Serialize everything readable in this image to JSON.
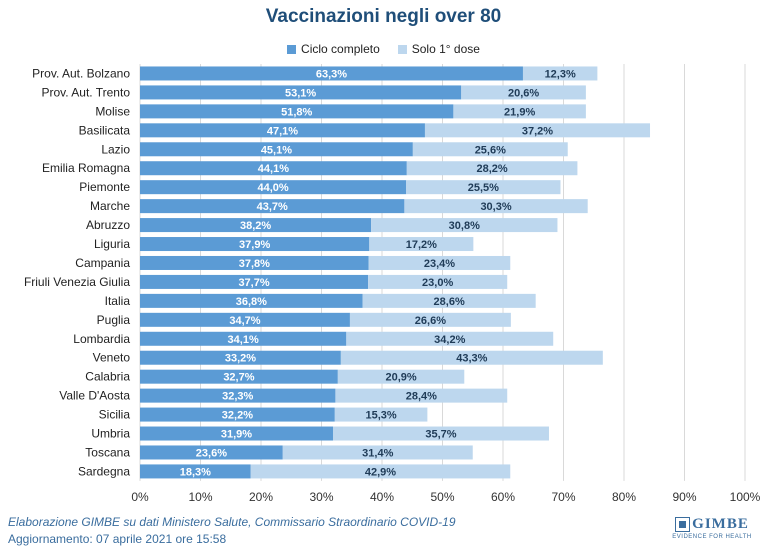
{
  "chart_data": {
    "type": "bar",
    "orientation": "horizontal",
    "stacked": true,
    "title": "Vaccinazioni negli over 80",
    "categories": [
      "Prov. Aut. Bolzano",
      "Prov. Aut. Trento",
      "Molise",
      "Basilicata",
      "Lazio",
      "Emilia Romagna",
      "Piemonte",
      "Marche",
      "Abruzzo",
      "Liguria",
      "Campania",
      "Friuli Venezia Giulia",
      "Italia",
      "Puglia",
      "Lombardia",
      "Veneto",
      "Calabria",
      "Valle D'Aosta",
      "Sicilia",
      "Umbria",
      "Toscana",
      "Sardegna"
    ],
    "series": [
      {
        "name": "Ciclo completo",
        "color": "#5b9bd5",
        "values": [
          63.3,
          53.1,
          51.8,
          47.1,
          45.1,
          44.1,
          44.0,
          43.7,
          38.2,
          37.9,
          37.8,
          37.7,
          36.8,
          34.7,
          34.1,
          33.2,
          32.7,
          32.3,
          32.2,
          31.9,
          23.6,
          18.3
        ],
        "labels": [
          "63,3%",
          "53,1%",
          "51,8%",
          "47,1%",
          "45,1%",
          "44,1%",
          "44,0%",
          "43,7%",
          "38,2%",
          "37,9%",
          "37,8%",
          "37,7%",
          "36,8%",
          "34,7%",
          "34,1%",
          "33,2%",
          "32,7%",
          "32,3%",
          "32,2%",
          "31,9%",
          "23,6%",
          "18,3%"
        ]
      },
      {
        "name": "Solo 1° dose",
        "color": "#bdd7ee",
        "values": [
          12.3,
          20.6,
          21.9,
          37.2,
          25.6,
          28.2,
          25.5,
          30.3,
          30.8,
          17.2,
          23.4,
          23.0,
          28.6,
          26.6,
          34.2,
          43.3,
          20.9,
          28.4,
          15.3,
          35.7,
          31.4,
          42.9
        ],
        "labels": [
          "12,3%",
          "20,6%",
          "21,9%",
          "37,2%",
          "25,6%",
          "28,2%",
          "25,5%",
          "30,3%",
          "30,8%",
          "17,2%",
          "23,4%",
          "23,0%",
          "28,6%",
          "26,6%",
          "34,2%",
          "43,3%",
          "20,9%",
          "28,4%",
          "15,3%",
          "35,7%",
          "31,4%",
          "42,9%"
        ]
      }
    ],
    "xlim": [
      0,
      100
    ],
    "xticks": [
      0,
      10,
      20,
      30,
      40,
      50,
      60,
      70,
      80,
      90,
      100
    ],
    "xtick_labels": [
      "0%",
      "10%",
      "20%",
      "30%",
      "40%",
      "50%",
      "60%",
      "70%",
      "80%",
      "90%",
      "100%"
    ],
    "grid": "vertical",
    "legend_position": "top-center"
  },
  "footer": {
    "line1": "Elaborazione GIMBE su dati Ministero Salute, Commissario Straordinario COVID-19",
    "line2": "Aggiornamento: 07 aprile 2021 ore 15:58"
  },
  "logo": {
    "name": "GIMBE",
    "tagline": "EVIDENCE FOR HEALTH"
  }
}
